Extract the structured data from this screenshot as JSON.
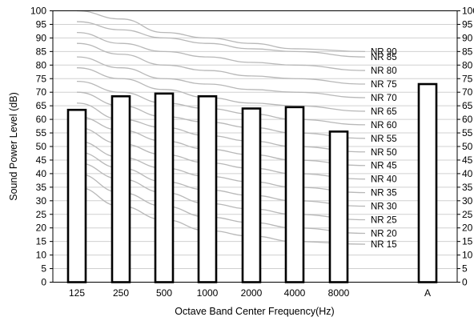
{
  "chart_data": {
    "type": "bar",
    "xlabel": "Octave Band Center Frequency(Hz)",
    "ylabel": "Sound Power Level (dB)",
    "ylim": [
      0,
      100
    ],
    "yticks": [
      0,
      5,
      10,
      15,
      20,
      25,
      30,
      35,
      40,
      45,
      50,
      55,
      60,
      65,
      70,
      75,
      80,
      85,
      90,
      95,
      100
    ],
    "right_axis": true,
    "grid": "horizontal",
    "categories": [
      "125",
      "250",
      "500",
      "1000",
      "2000",
      "4000",
      "8000",
      "A"
    ],
    "values": [
      63.5,
      68.5,
      69.5,
      68.5,
      64,
      64.5,
      55.5,
      73
    ],
    "nr_curves": {
      "frequencies": [
        "125",
        "250",
        "500",
        "1000",
        "2000",
        "4000",
        "8000"
      ],
      "curves": [
        {
          "label": "NR 15",
          "values": [
            35,
            28,
            23,
            19,
            17,
            15,
            14
          ]
        },
        {
          "label": "NR 20",
          "values": [
            40,
            33,
            28,
            24,
            22,
            20,
            18
          ]
        },
        {
          "label": "NR 25",
          "values": [
            44,
            38,
            33,
            29,
            27,
            25,
            23
          ]
        },
        {
          "label": "NR 30",
          "values": [
            48,
            42,
            37,
            34,
            32,
            30,
            28
          ]
        },
        {
          "label": "NR 35",
          "values": [
            52,
            46,
            42,
            39,
            37,
            35,
            33
          ]
        },
        {
          "label": "NR 40",
          "values": [
            57,
            51,
            47,
            44,
            42,
            40,
            38
          ]
        },
        {
          "label": "NR 45",
          "values": [
            61,
            56,
            52,
            49,
            47,
            45,
            43
          ]
        },
        {
          "label": "NR 50",
          "values": [
            66,
            60,
            57,
            54,
            52,
            50,
            48
          ]
        },
        {
          "label": "NR 55",
          "values": [
            70,
            65,
            61,
            59,
            57,
            55,
            53
          ]
        },
        {
          "label": "NR 60",
          "values": [
            74,
            70,
            66,
            64,
            62,
            60,
            58
          ]
        },
        {
          "label": "NR 65",
          "values": [
            79,
            75,
            71,
            68,
            66,
            65,
            63
          ]
        },
        {
          "label": "NR 70",
          "values": [
            83,
            79,
            75,
            73,
            71,
            70,
            68
          ]
        },
        {
          "label": "NR 75",
          "values": [
            88,
            84,
            80,
            78,
            76,
            75,
            73
          ]
        },
        {
          "label": "NR 80",
          "values": [
            92,
            88,
            85,
            83,
            81,
            80,
            78
          ]
        },
        {
          "label": "NR 85",
          "values": [
            96,
            93,
            90,
            88,
            86,
            85,
            83
          ]
        },
        {
          "label": "NR 90",
          "values": [
            100,
            97,
            92,
            90,
            88,
            86,
            85
          ]
        }
      ]
    }
  }
}
